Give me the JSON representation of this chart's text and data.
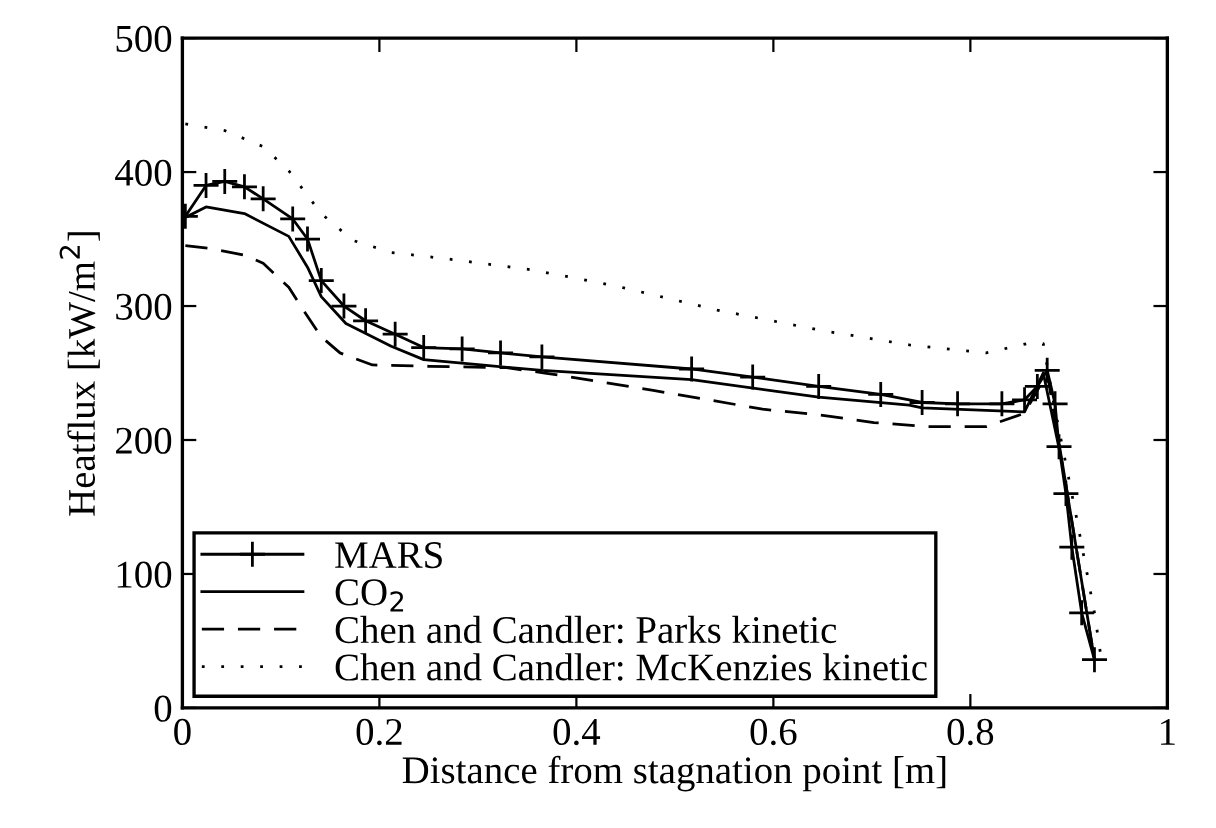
{
  "chart_data": {
    "type": "line",
    "xlabel": "Distance from stagnation point [m]",
    "ylabel": "Heatflux [kW/m$^{2}$]",
    "xlim": [
      0,
      1
    ],
    "xticks": [
      0,
      0.2,
      0.4,
      0.6,
      0.8,
      1
    ],
    "ylim": [
      0,
      500
    ],
    "yticks": [
      0,
      100,
      200,
      300,
      400,
      500
    ],
    "grid": false,
    "legend": "bottom left",
    "series": [
      {
        "name": "MARS",
        "color": "#000000",
        "marker": "cross",
        "line_style": "solid",
        "x": [
          0.003,
          0.024,
          0.043,
          0.063,
          0.082,
          0.112,
          0.127,
          0.141,
          0.164,
          0.186,
          0.216,
          0.245,
          0.284,
          0.323,
          0.365,
          0.517,
          0.579,
          0.646,
          0.709,
          0.751,
          0.787,
          0.832,
          0.855,
          0.868,
          0.878,
          0.886,
          0.89,
          0.897,
          0.903,
          0.913,
          0.926
        ],
        "values": [
          367,
          390,
          393,
          389,
          380,
          365,
          350,
          319,
          300,
          289,
          279,
          269,
          268,
          265,
          262,
          253,
          247,
          240,
          234,
          228,
          227,
          227,
          230,
          240,
          252,
          227,
          195,
          160,
          120,
          71,
          36
        ]
      },
      {
        "name": "CO$_{2}$",
        "color": "#000000",
        "marker": "none",
        "line_style": "solid",
        "x": [
          0.0,
          0.024,
          0.063,
          0.108,
          0.127,
          0.141,
          0.166,
          0.212,
          0.245,
          0.303,
          0.365,
          0.517,
          0.646,
          0.738,
          0.751,
          0.855,
          0.874,
          0.894,
          0.926
        ],
        "values": [
          365,
          374,
          369,
          352,
          329,
          307,
          287,
          270,
          260,
          256,
          252,
          245,
          232,
          226,
          224,
          221,
          250,
          180,
          36
        ]
      },
      {
        "name": "Chen and Candler: Parks kinetic",
        "color": "#000000",
        "marker": "none",
        "line_style": "dashed",
        "x": [
          0.003,
          0.027,
          0.063,
          0.082,
          0.108,
          0.121,
          0.141,
          0.16,
          0.193,
          0.251,
          0.329,
          0.368,
          0.42,
          0.478,
          0.534,
          0.589,
          0.644,
          0.702,
          0.757,
          0.816,
          0.855,
          0.878,
          0.894,
          0.926
        ],
        "values": [
          345,
          343,
          338,
          332,
          314,
          299,
          277,
          265,
          256,
          255,
          254,
          250,
          244,
          237,
          230,
          223,
          219,
          213,
          210,
          210,
          220,
          250,
          180,
          36
        ]
      },
      {
        "name": "Chen and Candler: McKenzies kinetic",
        "color": "#000000",
        "marker": "none",
        "line_style": "dotted",
        "x": [
          0.003,
          0.043,
          0.082,
          0.108,
          0.141,
          0.173,
          0.212,
          0.271,
          0.355,
          0.44,
          0.543,
          0.647,
          0.738,
          0.816,
          0.858,
          0.874,
          0.884,
          0.907,
          0.926,
          0.933
        ],
        "values": [
          436,
          431,
          419,
          401,
          369,
          349,
          340,
          335,
          327,
          315,
          297,
          282,
          271,
          265,
          272,
          272,
          230,
          145,
          71,
          36
        ]
      }
    ]
  }
}
